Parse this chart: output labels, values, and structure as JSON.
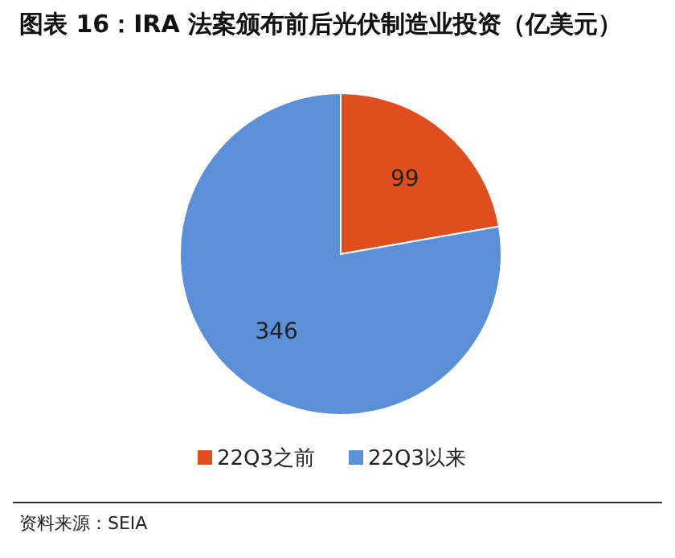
{
  "chart_data": {
    "type": "pie",
    "title": "图表 16：IRA 法案颁布前后光伏制造业投资（亿美元）",
    "categories": [
      "22Q3之前",
      "22Q3以来"
    ],
    "values": [
      99,
      346
    ],
    "colors": [
      "#e04e1f",
      "#5b8fd8"
    ],
    "data_labels": true,
    "legend": "bottom",
    "annotations": [
      "资料来源：SEIA"
    ]
  }
}
